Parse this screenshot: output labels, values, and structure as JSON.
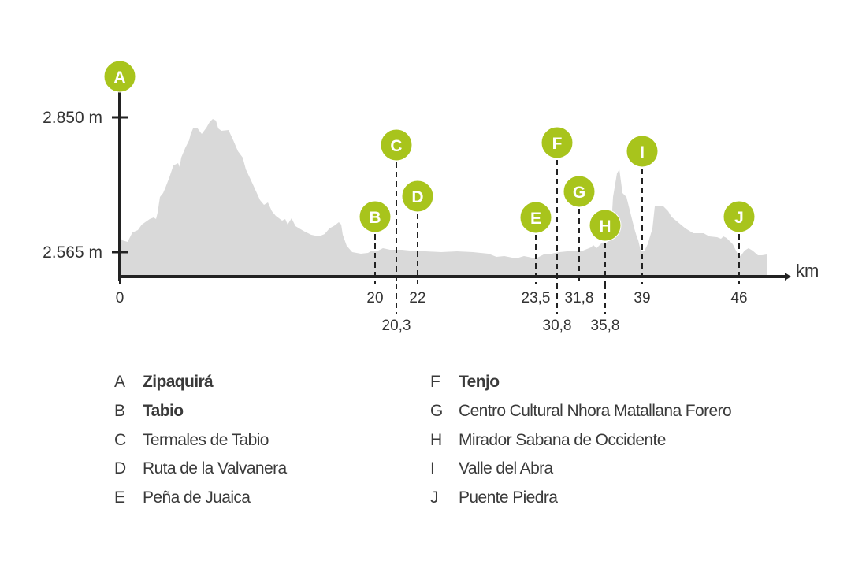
{
  "chart_data": {
    "type": "area",
    "xlabel": "km",
    "ylabel": "",
    "y_ticks": [
      {
        "value": 2850,
        "label": "2.850 m"
      },
      {
        "value": 2565,
        "label": "2.565 m"
      }
    ],
    "x_ticks": [
      {
        "km": 0,
        "label": "0"
      },
      {
        "km": 20,
        "label": "20"
      },
      {
        "km": 20.3,
        "label": "20,3"
      },
      {
        "km": 22,
        "label": "22"
      },
      {
        "km": 23.5,
        "label": "23,5"
      },
      {
        "km": 30.8,
        "label": "30,8"
      },
      {
        "km": 31.8,
        "label": "31,8"
      },
      {
        "km": 35.8,
        "label": "35,8"
      },
      {
        "km": 39,
        "label": "39"
      },
      {
        "km": 46,
        "label": "46"
      }
    ],
    "waypoints": [
      {
        "letter": "A",
        "km": 0,
        "name": "Zipaquirá",
        "bold": true
      },
      {
        "letter": "B",
        "km": 20,
        "name": "Tabio",
        "bold": true
      },
      {
        "letter": "C",
        "km": 20.3,
        "name": "Termales de Tabio",
        "bold": false
      },
      {
        "letter": "D",
        "km": 22,
        "name": "Ruta de la Valvanera",
        "bold": false
      },
      {
        "letter": "E",
        "km": 23.5,
        "name": "Peña de Juaica",
        "bold": false
      },
      {
        "letter": "F",
        "km": 30.8,
        "name": "Tenjo",
        "bold": true
      },
      {
        "letter": "G",
        "km": 31.8,
        "name": "Centro Cultural Nhora Matallana Forero",
        "bold": false
      },
      {
        "letter": "H",
        "km": 35.8,
        "name": "Mirador Sabana de Occidente",
        "bold": false
      },
      {
        "letter": "I",
        "km": 39,
        "name": "Valle del Abra",
        "bold": false
      },
      {
        "letter": "J",
        "km": 46,
        "name": "Puente Piedra",
        "bold": false
      }
    ],
    "colors": {
      "marker": "#a8c41c",
      "profile": "#d9d9d9",
      "axis": "#222222"
    }
  }
}
